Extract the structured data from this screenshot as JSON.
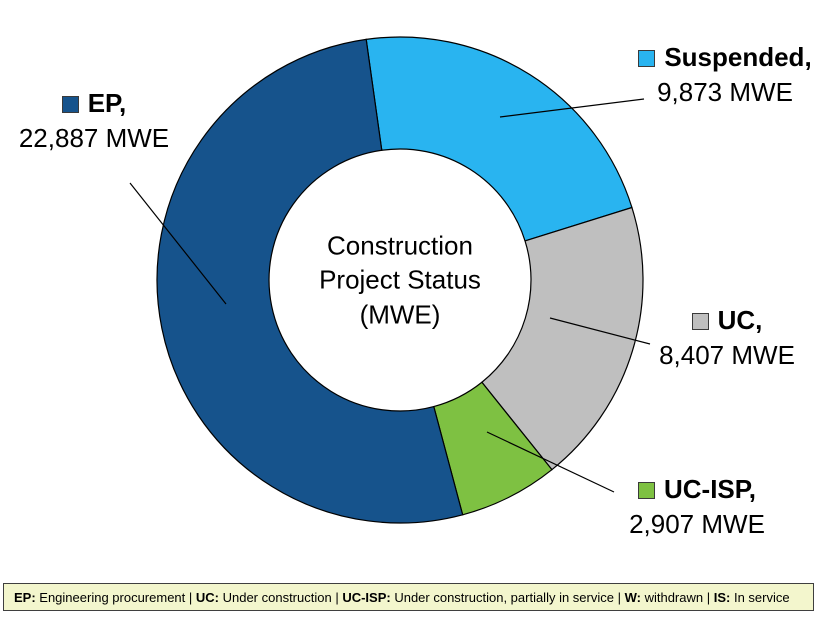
{
  "chart_data": {
    "type": "pie",
    "subtype": "donut",
    "title": "Construction Project Status (MWE)",
    "center_label": "Construction\nProject Status\n(MWE)",
    "unit": "MWE",
    "start_angle_deg": -8,
    "direction": "clockwise",
    "outline_color": "#000000",
    "legend_position": "callouts",
    "slices": [
      {
        "id": "suspended",
        "label": "Suspended",
        "value": 9873,
        "callout_name": "Suspended,",
        "callout_value": "9,873 MWE",
        "color": "#29B4F0"
      },
      {
        "id": "uc",
        "label": "UC",
        "value": 8407,
        "callout_name": "UC,",
        "callout_value": "8,407 MWE",
        "color": "#BFBFBF"
      },
      {
        "id": "uc-isp",
        "label": "UC-ISP",
        "value": 2907,
        "callout_name": "UC-ISP,",
        "callout_value": "2,907 MWE",
        "color": "#7EC142"
      },
      {
        "id": "ep",
        "label": "EP",
        "value": 22887,
        "callout_name": "EP,",
        "callout_value": "22,887 MWE",
        "color": "#16538C"
      }
    ]
  },
  "footer": {
    "separator": " | ",
    "background": "#F3F6CD",
    "border_color": "#3F3F3F",
    "items": [
      {
        "abbr": "EP:",
        "desc": "Engineering procurement"
      },
      {
        "abbr": "UC:",
        "desc": "Under construction"
      },
      {
        "abbr": "UC-ISP:",
        "desc": "Under construction, partially in service"
      },
      {
        "abbr": "W:",
        "desc": "withdrawn"
      },
      {
        "abbr": "IS:",
        "desc": "In service"
      }
    ]
  }
}
